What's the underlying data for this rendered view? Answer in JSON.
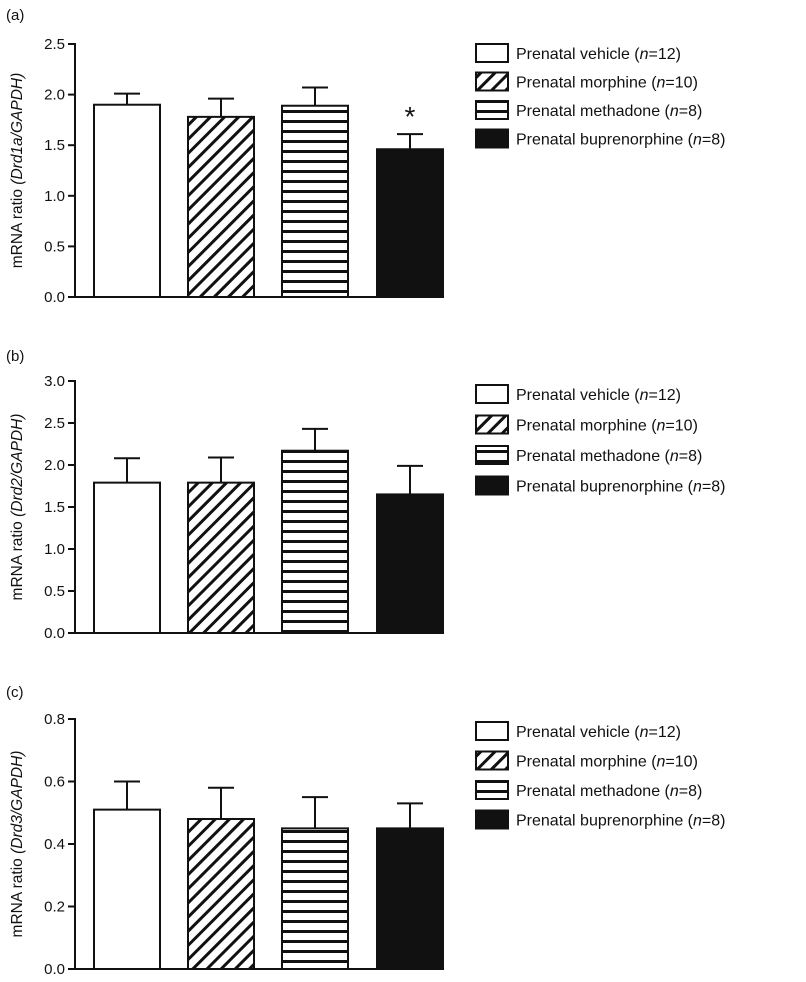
{
  "colors": {
    "ink": "#111111",
    "paper": "#ffffff"
  },
  "chart_data": [
    {
      "type": "bar",
      "panel_label": "(a)",
      "ylabel_prefix": "mRNA ratio ",
      "ylabel_gene": "(Drd1a/GAPDH)",
      "ylim": [
        0,
        2.5
      ],
      "yticks": [
        "0.0",
        "0.5",
        "1.0",
        "1.5",
        "2.0",
        "2.5"
      ],
      "legend_position": "right",
      "categories": [
        {
          "name": "Prenatal vehicle",
          "n_prefix": "(",
          "n_italic": "n",
          "n_suffix": "=12)",
          "pattern": "white"
        },
        {
          "name": "Prenatal morphine",
          "n_prefix": "(",
          "n_italic": "n",
          "n_suffix": "=10)",
          "pattern": "diagonal"
        },
        {
          "name": "Prenatal methadone",
          "n_prefix": "(",
          "n_italic": "n",
          "n_suffix": "=8)",
          "pattern": "horizontal"
        },
        {
          "name": "Prenatal buprenorphine",
          "n_prefix": "(",
          "n_italic": "n",
          "n_suffix": "=8)",
          "pattern": "black"
        }
      ],
      "values": [
        1.9,
        1.78,
        1.89,
        1.46
      ],
      "errors": [
        0.11,
        0.18,
        0.18,
        0.15
      ],
      "annotations": [
        "",
        "",
        "",
        "*"
      ]
    },
    {
      "type": "bar",
      "panel_label": "(b)",
      "ylabel_prefix": "mRNA ratio ",
      "ylabel_gene": "(Drd2/GAPDH)",
      "ylim": [
        0,
        3.0
      ],
      "yticks": [
        "0.0",
        "0.5",
        "1.0",
        "1.5",
        "2.0",
        "2.5",
        "3.0"
      ],
      "legend_position": "right",
      "categories": [
        {
          "name": "Prenatal vehicle",
          "n_prefix": "(",
          "n_italic": "n",
          "n_suffix": "=12)",
          "pattern": "white"
        },
        {
          "name": "Prenatal morphine",
          "n_prefix": "(",
          "n_italic": "n",
          "n_suffix": "=10)",
          "pattern": "diagonal"
        },
        {
          "name": "Prenatal methadone",
          "n_prefix": "(",
          "n_italic": "n",
          "n_suffix": "=8)",
          "pattern": "horizontal"
        },
        {
          "name": "Prenatal buprenorphine",
          "n_prefix": "(",
          "n_italic": "n",
          "n_suffix": "=8)",
          "pattern": "black"
        }
      ],
      "values": [
        1.79,
        1.79,
        2.17,
        1.65
      ],
      "errors": [
        0.29,
        0.3,
        0.26,
        0.34
      ],
      "annotations": [
        "",
        "",
        "",
        ""
      ]
    },
    {
      "type": "bar",
      "panel_label": "(c)",
      "ylabel_prefix": "mRNA ratio ",
      "ylabel_gene": "(Drd3/GAPDH)",
      "ylim": [
        0,
        0.8
      ],
      "yticks": [
        "0.0",
        "0.2",
        "0.4",
        "0.6",
        "0.8"
      ],
      "legend_position": "right",
      "categories": [
        {
          "name": "Prenatal vehicle",
          "n_prefix": "(",
          "n_italic": "n",
          "n_suffix": "=12)",
          "pattern": "white"
        },
        {
          "name": "Prenatal morphine",
          "n_prefix": "(",
          "n_italic": "n",
          "n_suffix": "=10)",
          "pattern": "diagonal"
        },
        {
          "name": "Prenatal methadone",
          "n_prefix": "(",
          "n_italic": "n",
          "n_suffix": "=8)",
          "pattern": "horizontal"
        },
        {
          "name": "Prenatal buprenorphine",
          "n_prefix": "(",
          "n_italic": "n",
          "n_suffix": "=8)",
          "pattern": "black"
        }
      ],
      "values": [
        0.51,
        0.48,
        0.45,
        0.45
      ],
      "errors": [
        0.09,
        0.1,
        0.1,
        0.08
      ],
      "annotations": [
        "",
        "",
        "",
        ""
      ]
    }
  ]
}
